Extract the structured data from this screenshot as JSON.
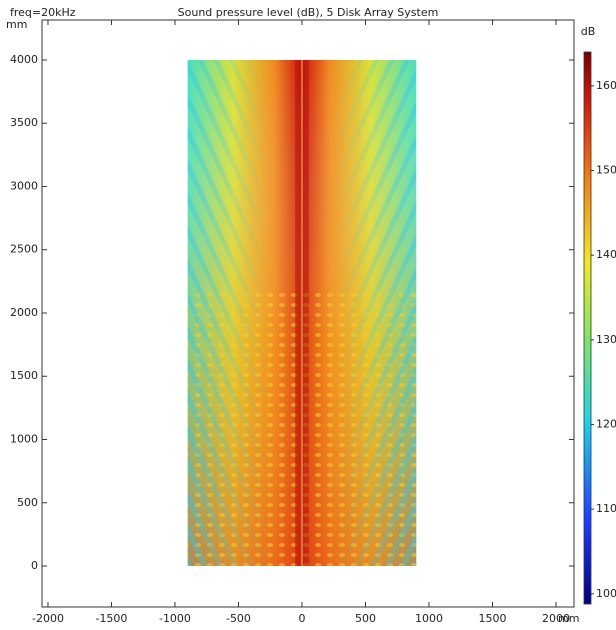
{
  "chart_data": {
    "type": "heatmap",
    "title": "Sound pressure level (dB), 5 Disk Array System",
    "annotation": "freq=20kHz",
    "x_label": "mm",
    "y_label": "mm",
    "xlim": [
      -2047,
      2142
    ],
    "ylim": [
      -324,
      4316
    ],
    "xticks": [
      -2000,
      -1500,
      -1000,
      -500,
      0,
      500,
      1000,
      1500,
      2000
    ],
    "yticks": [
      0,
      500,
      1000,
      1500,
      2000,
      2500,
      3000,
      3500,
      4000
    ],
    "field_extent": {
      "x": [
        -900,
        900
      ],
      "y": [
        0,
        4000
      ]
    },
    "colorbar": {
      "label": "dB",
      "lim": [
        98.8,
        164
      ],
      "ticks": [
        100,
        110,
        120,
        130,
        140,
        150,
        160
      ]
    }
  }
}
